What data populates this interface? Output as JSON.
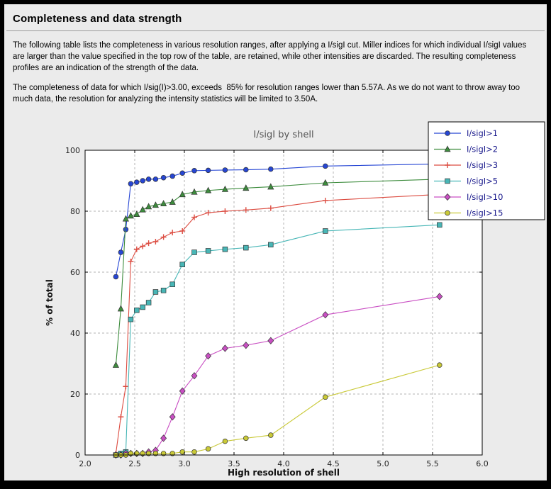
{
  "header": {
    "title": "Completeness and data strength"
  },
  "paragraphs": {
    "p1": "The following table lists the completeness in various resolution ranges, after applying a I/sigI cut. Miller indices for which individual I/sigI values are larger than the value specified in the top row of the table, are retained, while other intensities are discarded. The resulting completeness profiles are an indication of the strength of the data.",
    "p2": "The completeness of data for which I/sig(I)>3.00, exceeds  85% for resolution ranges lower than 5.57A. As we do not want to throw away too much data, the resolution for analyzing the intensity statistics will be limited to 3.50A."
  },
  "colors": {
    "page_bg": "#ebebeb",
    "frame": "#000000",
    "plot_bg": "#ffffff",
    "grid": "#b3b3b3",
    "title": "#555555",
    "tick_label": "#262626",
    "legend_text": "#1a1a8c",
    "legend_bg": "#ffffff"
  },
  "chart_data": {
    "type": "line",
    "title": "I/sigI by shell",
    "xlabel": "High resolution of shell",
    "ylabel": "% of total",
    "xlim": [
      2.0,
      6.0
    ],
    "ylim": [
      0,
      100
    ],
    "xticks": [
      2.0,
      2.5,
      3.0,
      3.5,
      4.0,
      4.5,
      5.0,
      5.5,
      6.0
    ],
    "xtick_labels": [
      "2.0",
      "2.5",
      "3.0",
      "3.5",
      "4.0",
      "4.5",
      "5.0",
      "5.5",
      "6.0"
    ],
    "yticks": [
      0,
      20,
      40,
      60,
      80,
      100
    ],
    "grid": true,
    "legend_position": "top-right",
    "x": [
      2.31,
      2.36,
      2.41,
      2.46,
      2.52,
      2.58,
      2.64,
      2.71,
      2.79,
      2.88,
      2.98,
      3.1,
      3.24,
      3.41,
      3.62,
      3.87,
      4.42,
      5.57
    ],
    "series": [
      {
        "name": "I/sigI>1",
        "color": "#2646d4",
        "marker": "circle",
        "values": [
          58.5,
          66.5,
          74.0,
          89.0,
          89.5,
          90.0,
          90.5,
          90.5,
          91.0,
          91.5,
          92.5,
          93.3,
          93.4,
          93.5,
          93.6,
          93.8,
          94.8,
          95.5
        ]
      },
      {
        "name": "I/sigI>2",
        "color": "#3d8c3d",
        "marker": "triangle",
        "values": [
          29.5,
          48.0,
          77.5,
          78.5,
          79.0,
          80.5,
          81.5,
          82.0,
          82.5,
          83.0,
          85.5,
          86.3,
          86.8,
          87.2,
          87.6,
          88.0,
          89.3,
          90.5
        ]
      },
      {
        "name": "I/sigI>3",
        "color": "#dc4c41",
        "marker": "plus",
        "values": [
          0.5,
          12.5,
          22.5,
          63.5,
          67.5,
          68.5,
          69.5,
          70.0,
          71.5,
          73.0,
          73.5,
          78.0,
          79.5,
          80.0,
          80.4,
          81.0,
          83.5,
          85.5
        ]
      },
      {
        "name": "I/sigI>5",
        "color": "#47b6b6",
        "marker": "square",
        "values": [
          0.0,
          0.5,
          1.0,
          44.5,
          47.5,
          48.5,
          50.0,
          53.5,
          54.0,
          56.0,
          62.5,
          66.5,
          67.0,
          67.5,
          68.0,
          69.0,
          73.5,
          75.5
        ]
      },
      {
        "name": "I/sigI>10",
        "color": "#c94fc3",
        "marker": "diamond",
        "values": [
          0.0,
          0.0,
          0.5,
          0.5,
          0.5,
          0.5,
          1.0,
          1.5,
          5.5,
          12.5,
          21.0,
          26.0,
          32.5,
          35.0,
          36.0,
          37.5,
          46.0,
          52.0
        ]
      },
      {
        "name": "I/sigI>15",
        "color": "#c9c937",
        "marker": "circle",
        "values": [
          0.0,
          0.0,
          0.0,
          0.5,
          0.5,
          0.5,
          0.5,
          0.5,
          0.5,
          0.5,
          1.0,
          1.0,
          2.0,
          4.5,
          5.5,
          6.5,
          19.0,
          29.5
        ]
      }
    ]
  }
}
